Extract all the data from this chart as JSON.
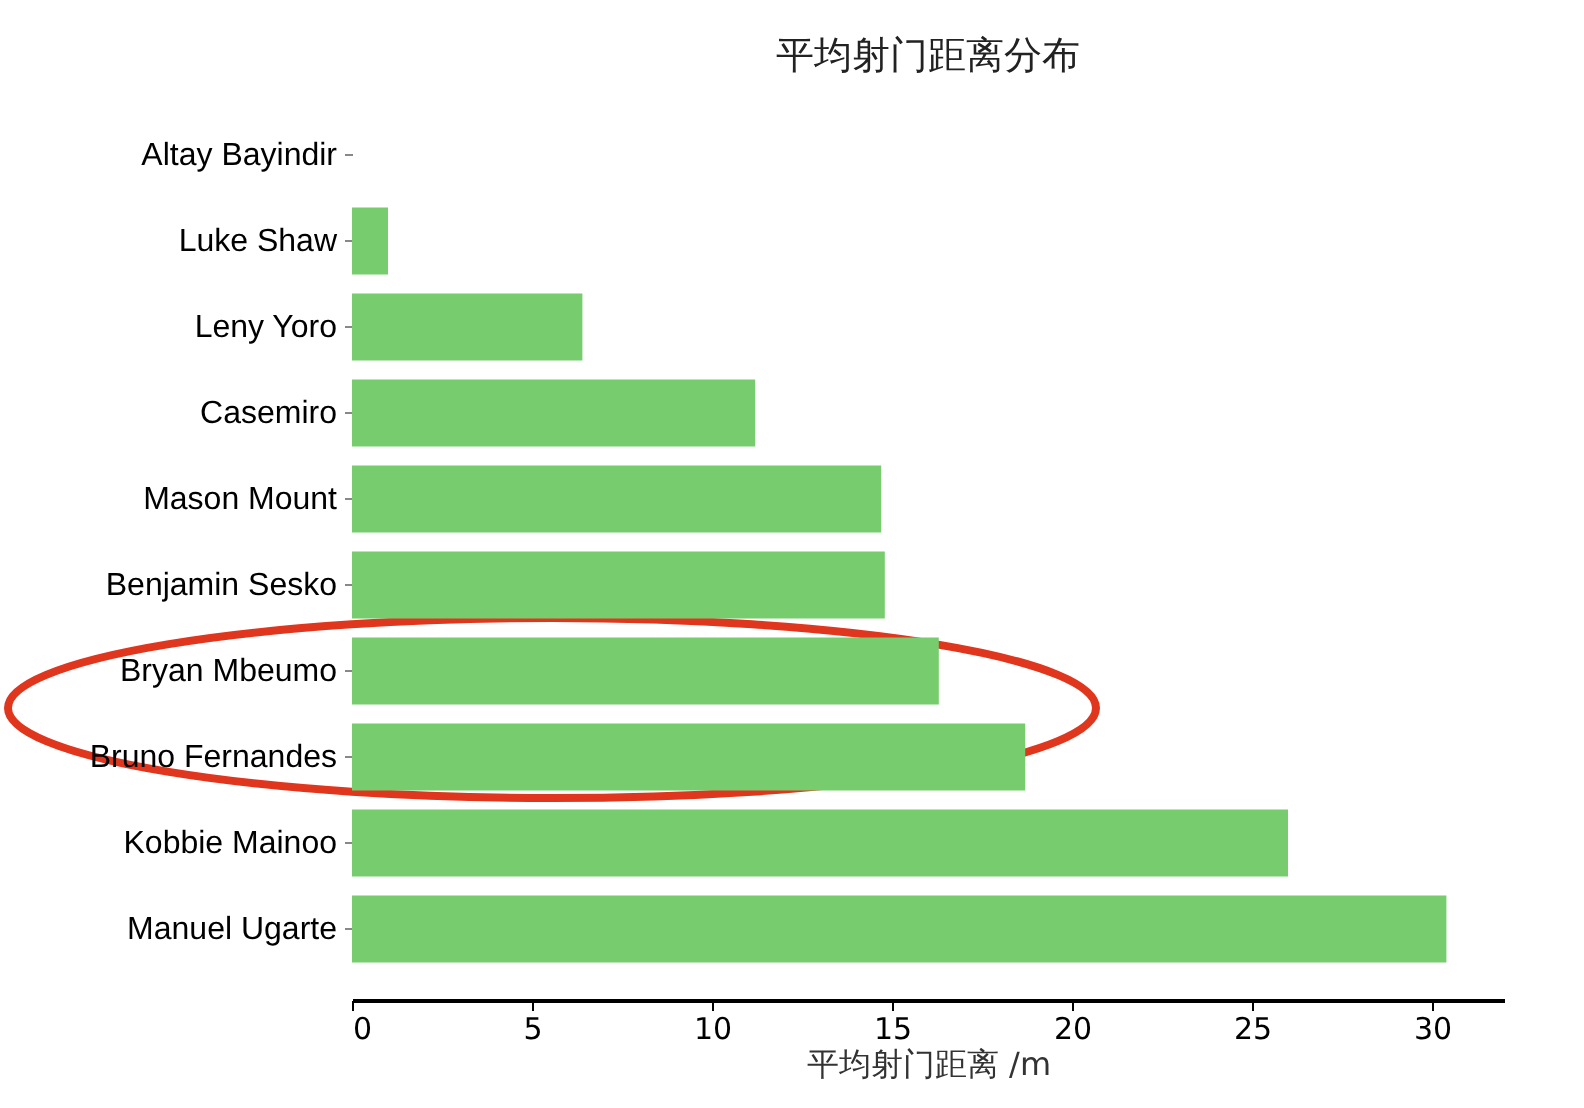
{
  "chart_data": {
    "type": "bar",
    "orientation": "horizontal",
    "title": "平均射门距离分布",
    "xlabel": "平均射门距离 /m",
    "categories": [
      "Altay Bayindir",
      "Luke Shaw",
      "Leny Yoro",
      "Casemiro",
      "Mason Mount",
      "Benjamin Sesko",
      "Bryan Mbeumo",
      "Bruno Fernandes",
      "Kobbie Mainoo",
      "Manuel Ugarte"
    ],
    "values": [
      0,
      1.0,
      6.4,
      11.2,
      14.7,
      14.8,
      16.3,
      18.7,
      26.0,
      30.4
    ],
    "color": "#77cc6e",
    "xlim": [
      0,
      32
    ],
    "xticks": [
      0,
      5,
      10,
      15,
      20,
      25,
      30
    ],
    "grid": false
  }
}
